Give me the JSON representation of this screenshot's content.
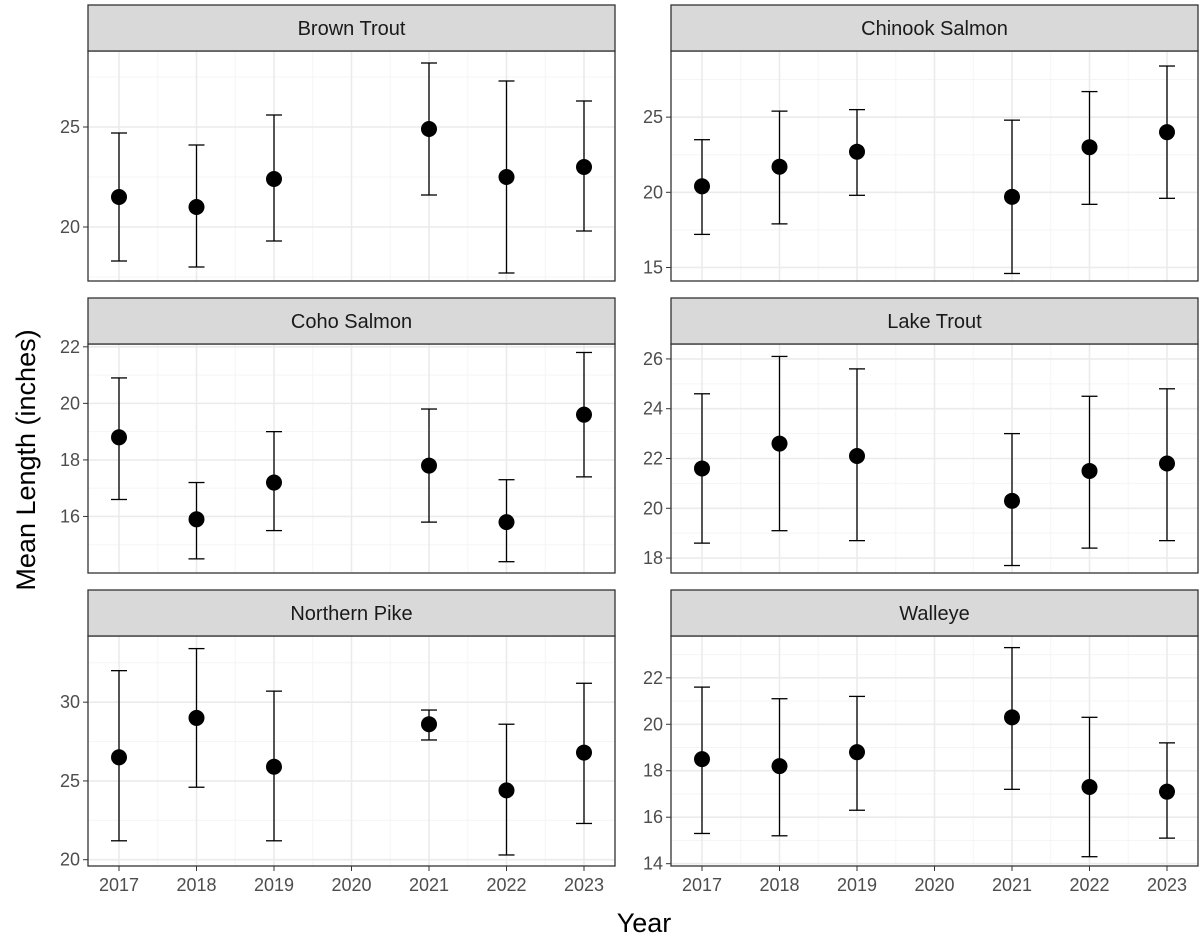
{
  "chart_data": {
    "type": "scatter",
    "layout": "facet-grid",
    "xlabel": "Year",
    "ylabel": "Mean Length (inches)",
    "x_ticks": [
      "2017",
      "2018",
      "2019",
      "2020",
      "2021",
      "2022",
      "2023"
    ],
    "xlim": [
      2016.6,
      2023.4
    ],
    "grid": true,
    "legend": "none",
    "colors": {
      "point": "#000000",
      "strip_bg": "#d9d9d9",
      "grid_major": "#ebebeb",
      "grid_minor": "#f5f5f5",
      "panel_border": "#333333"
    },
    "panels": [
      {
        "title": "Brown Trout",
        "ylim": [
          17.3,
          28.8
        ],
        "y_ticks": [
          20,
          25
        ],
        "points": [
          {
            "x": 2017,
            "y": 21.5,
            "ymin": 18.3,
            "ymax": 24.7
          },
          {
            "x": 2018,
            "y": 21.0,
            "ymin": 18.0,
            "ymax": 24.1
          },
          {
            "x": 2019,
            "y": 22.4,
            "ymin": 19.3,
            "ymax": 25.6
          },
          {
            "x": 2021,
            "y": 24.9,
            "ymin": 21.6,
            "ymax": 28.2
          },
          {
            "x": 2022,
            "y": 22.5,
            "ymin": 17.7,
            "ymax": 27.3
          },
          {
            "x": 2023,
            "y": 23.0,
            "ymin": 19.8,
            "ymax": 26.3
          }
        ]
      },
      {
        "title": "Chinook Salmon",
        "ylim": [
          14.1,
          29.4
        ],
        "y_ticks": [
          15,
          20,
          25
        ],
        "points": [
          {
            "x": 2017,
            "y": 20.4,
            "ymin": 17.2,
            "ymax": 23.5
          },
          {
            "x": 2018,
            "y": 21.7,
            "ymin": 17.9,
            "ymax": 25.4
          },
          {
            "x": 2019,
            "y": 22.7,
            "ymin": 19.8,
            "ymax": 25.5
          },
          {
            "x": 2021,
            "y": 19.7,
            "ymin": 14.6,
            "ymax": 24.8
          },
          {
            "x": 2022,
            "y": 23.0,
            "ymin": 19.2,
            "ymax": 26.7
          },
          {
            "x": 2023,
            "y": 24.0,
            "ymin": 19.6,
            "ymax": 28.4
          }
        ]
      },
      {
        "title": "Coho Salmon",
        "ylim": [
          14.0,
          22.1
        ],
        "y_ticks": [
          16,
          18,
          20,
          22
        ],
        "points": [
          {
            "x": 2017,
            "y": 18.8,
            "ymin": 16.6,
            "ymax": 20.9
          },
          {
            "x": 2018,
            "y": 15.9,
            "ymin": 14.5,
            "ymax": 17.2
          },
          {
            "x": 2019,
            "y": 17.2,
            "ymin": 15.5,
            "ymax": 19.0
          },
          {
            "x": 2021,
            "y": 17.8,
            "ymin": 15.8,
            "ymax": 19.8
          },
          {
            "x": 2022,
            "y": 15.8,
            "ymin": 14.4,
            "ymax": 17.3
          },
          {
            "x": 2023,
            "y": 19.6,
            "ymin": 17.4,
            "ymax": 21.8
          }
        ]
      },
      {
        "title": "Lake Trout",
        "ylim": [
          17.4,
          26.6
        ],
        "y_ticks": [
          18,
          20,
          22,
          24,
          26
        ],
        "points": [
          {
            "x": 2017,
            "y": 21.6,
            "ymin": 18.6,
            "ymax": 24.6
          },
          {
            "x": 2018,
            "y": 22.6,
            "ymin": 19.1,
            "ymax": 26.1
          },
          {
            "x": 2019,
            "y": 22.1,
            "ymin": 18.7,
            "ymax": 25.6
          },
          {
            "x": 2021,
            "y": 20.3,
            "ymin": 17.7,
            "ymax": 23.0
          },
          {
            "x": 2022,
            "y": 21.5,
            "ymin": 18.4,
            "ymax": 24.5
          },
          {
            "x": 2023,
            "y": 21.8,
            "ymin": 18.7,
            "ymax": 24.8
          }
        ]
      },
      {
        "title": "Northern Pike",
        "ylim": [
          19.6,
          34.2
        ],
        "y_ticks": [
          20,
          25,
          30
        ],
        "points": [
          {
            "x": 2017,
            "y": 26.5,
            "ymin": 21.2,
            "ymax": 32.0
          },
          {
            "x": 2018,
            "y": 29.0,
            "ymin": 24.6,
            "ymax": 33.4
          },
          {
            "x": 2019,
            "y": 25.9,
            "ymin": 21.2,
            "ymax": 30.7
          },
          {
            "x": 2021,
            "y": 28.6,
            "ymin": 27.6,
            "ymax": 29.5
          },
          {
            "x": 2022,
            "y": 24.4,
            "ymin": 20.3,
            "ymax": 28.6
          },
          {
            "x": 2023,
            "y": 26.8,
            "ymin": 22.3,
            "ymax": 31.2
          }
        ]
      },
      {
        "title": "Walleye",
        "ylim": [
          13.9,
          23.8
        ],
        "y_ticks": [
          14,
          16,
          18,
          20,
          22
        ],
        "points": [
          {
            "x": 2017,
            "y": 18.5,
            "ymin": 15.3,
            "ymax": 21.6
          },
          {
            "x": 2018,
            "y": 18.2,
            "ymin": 15.2,
            "ymax": 21.1
          },
          {
            "x": 2019,
            "y": 18.8,
            "ymin": 16.3,
            "ymax": 21.2
          },
          {
            "x": 2021,
            "y": 20.3,
            "ymin": 17.2,
            "ymax": 23.3
          },
          {
            "x": 2022,
            "y": 17.3,
            "ymin": 14.3,
            "ymax": 20.3
          },
          {
            "x": 2023,
            "y": 17.1,
            "ymin": 15.1,
            "ymax": 19.2
          }
        ]
      }
    ]
  }
}
